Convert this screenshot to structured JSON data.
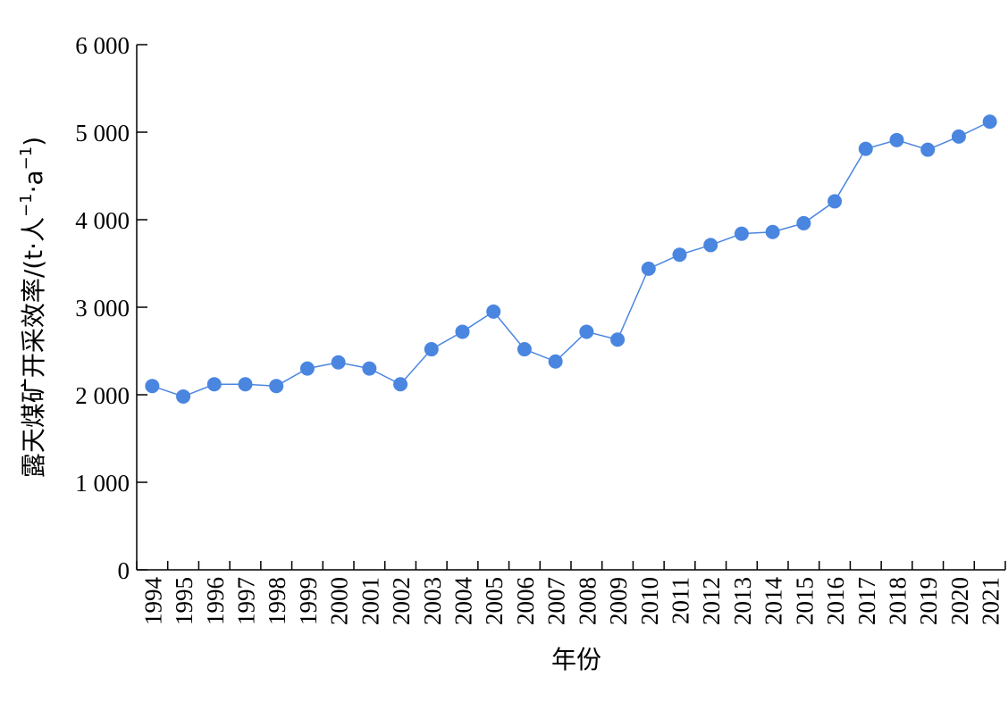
{
  "chart_data": {
    "type": "line",
    "xlabel": "年份",
    "ylabel_main": "露天煤矿开采效率/(t·人",
    "ylabel_sup1": "−1",
    "ylabel_mid": "·a",
    "ylabel_sup2": "−1",
    "ylabel_end": ")",
    "ylim": [
      0,
      6000
    ],
    "yticks": [
      0,
      1000,
      2000,
      3000,
      4000,
      5000,
      6000
    ],
    "ytick_labels": [
      "0",
      "1 000",
      "2 000",
      "3 000",
      "4 000",
      "5 000",
      "6 000"
    ],
    "x": [
      "1994",
      "1995",
      "1996",
      "1997",
      "1998",
      "1999",
      "2000",
      "2001",
      "2002",
      "2003",
      "2004",
      "2005",
      "2006",
      "2007",
      "2008",
      "2009",
      "2010",
      "2011",
      "2012",
      "2013",
      "2014",
      "2015",
      "2016",
      "2017",
      "2018",
      "2019",
      "2020",
      "2021"
    ],
    "series": [
      {
        "values": [
          2100,
          1980,
          2120,
          2120,
          2100,
          2300,
          2370,
          2300,
          2120,
          2520,
          2720,
          2950,
          2520,
          2380,
          2720,
          2630,
          3440,
          3600,
          3710,
          3840,
          3860,
          3960,
          4210,
          4810,
          4910,
          4800,
          4950,
          5120
        ]
      }
    ],
    "color": "#4a86e0",
    "grid": false
  }
}
